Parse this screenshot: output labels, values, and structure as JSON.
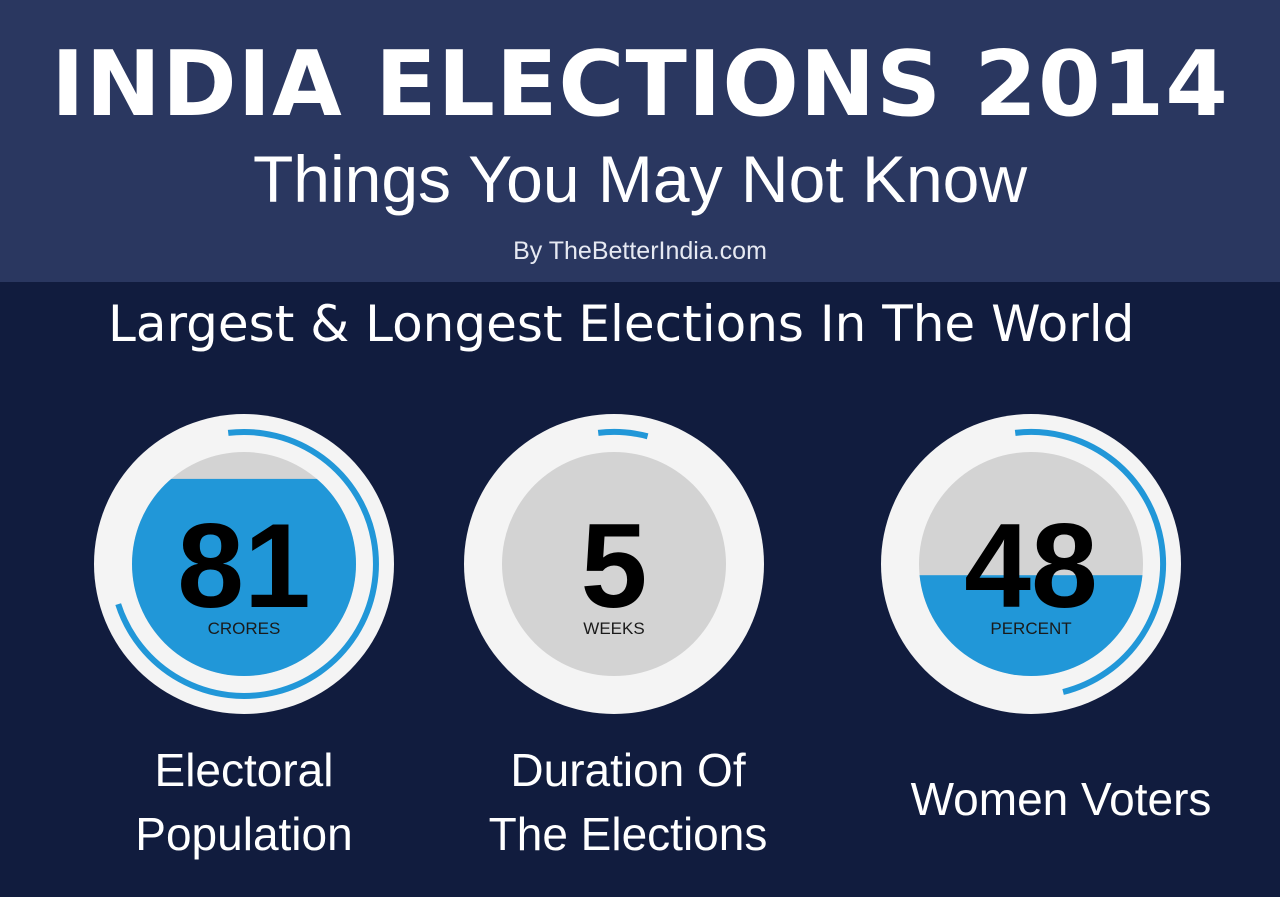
{
  "header": {
    "title": "INDIA ELECTIONS 2014",
    "subtitle": "Things You May Not Know",
    "byline": "By TheBetterIndia.com"
  },
  "section": {
    "title": "Largest & Longest Elections In The World"
  },
  "stats": [
    {
      "value": "81",
      "unit": "CRORES",
      "label_line1": "Electoral",
      "label_line2": "Population",
      "fill_fraction": 0.88,
      "ring_fraction": 0.72
    },
    {
      "value": "5",
      "unit": "WEEKS",
      "label_line1": "Duration Of",
      "label_line2": "The Elections",
      "fill_fraction": 0.0,
      "ring_fraction": 0.06
    },
    {
      "value": "48",
      "unit": "PERCENT",
      "label_line1": "Women Voters",
      "label_line2": "",
      "fill_fraction": 0.45,
      "ring_fraction": 0.48
    }
  ],
  "colors": {
    "header_bg": "#2a3760",
    "page_bg": "#111c3e",
    "accent_blue": "#2197d8",
    "inner_gray": "#d3d3d3",
    "ring_white": "#f4f4f4"
  }
}
